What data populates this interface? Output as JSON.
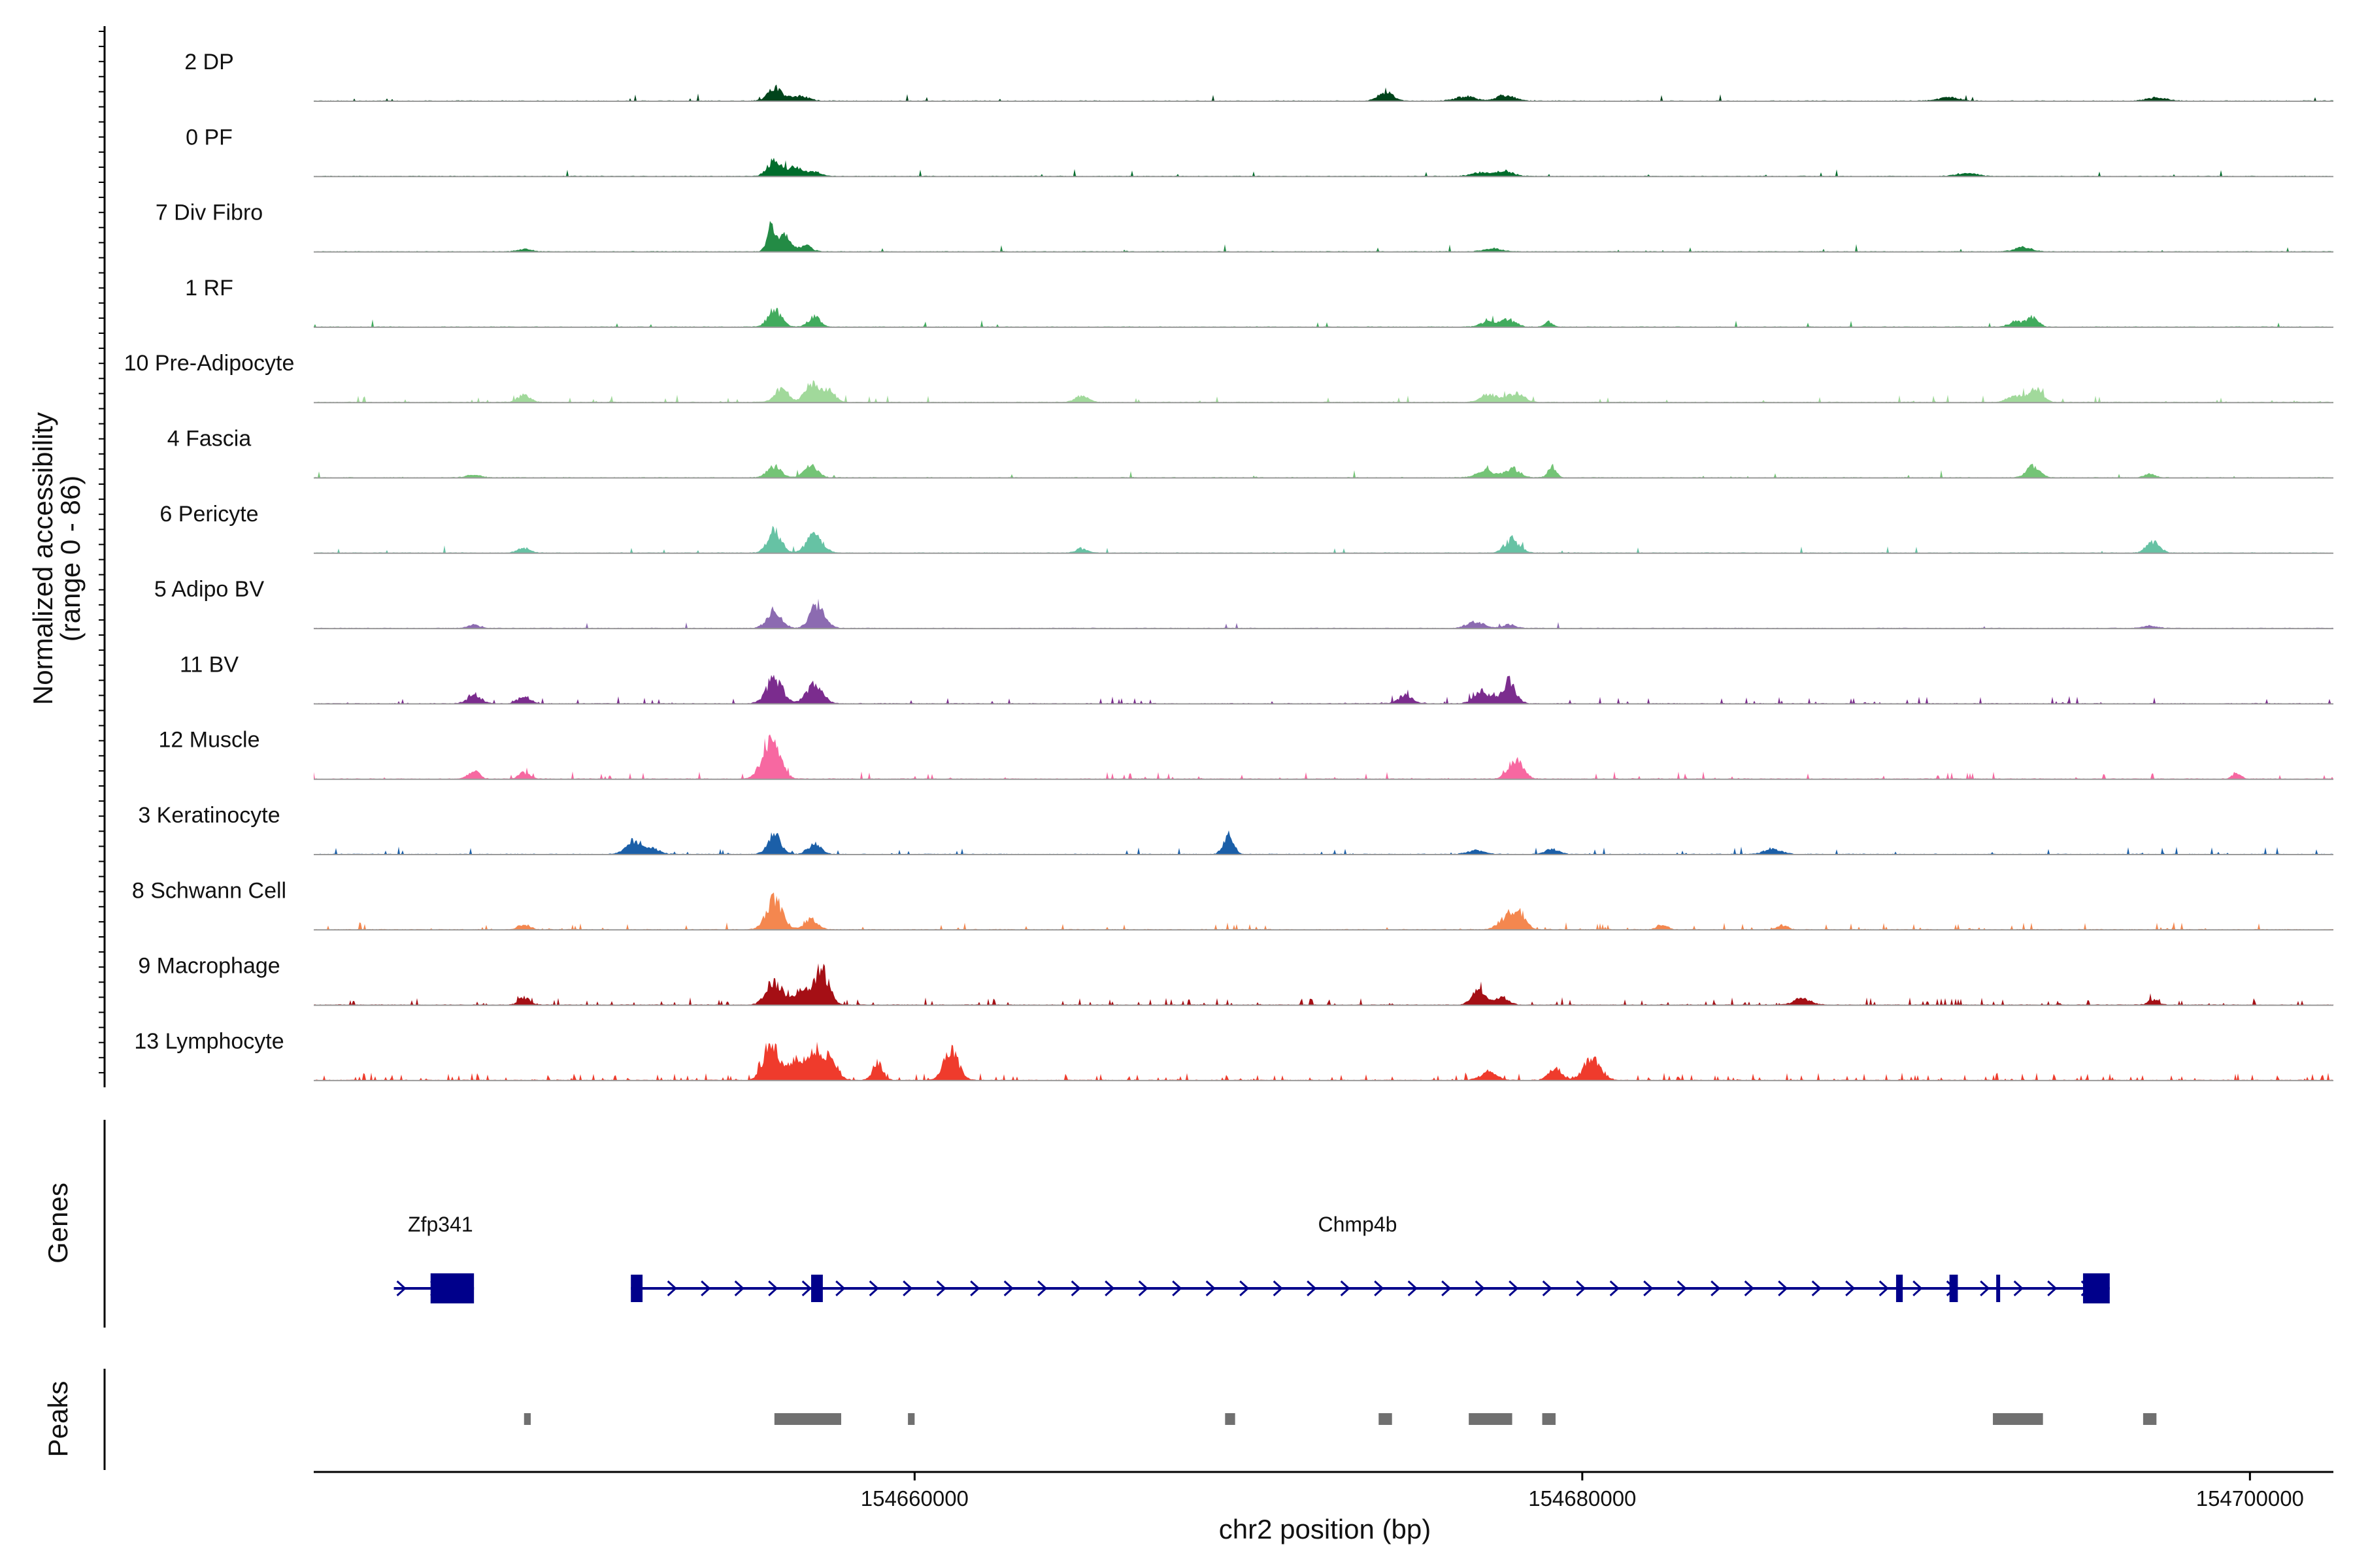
{
  "chart_data": {
    "type": "coverage-track",
    "y_axis_title": [
      "Normalized accessibility",
      "(range 0 - 86)"
    ],
    "y_range": [
      0,
      86
    ],
    "x_axis_title": "chr2 position (bp)",
    "x_range": [
      154642000,
      154702500
    ],
    "x_ticks": [
      {
        "value": 154660000,
        "label": "154660000"
      },
      {
        "value": 154680000,
        "label": "154680000"
      },
      {
        "value": 154700000,
        "label": "154700000"
      }
    ],
    "tracks": [
      {
        "name": "2 DP",
        "color": "#00441b",
        "bg": 0.012,
        "peaks": [
          [
            154655800,
            22,
            200
          ],
          [
            154656500,
            8,
            300
          ],
          [
            154674100,
            14,
            220
          ],
          [
            154676500,
            7,
            300
          ],
          [
            154677700,
            9,
            260
          ],
          [
            154691000,
            6,
            300
          ],
          [
            154697200,
            5,
            300
          ]
        ]
      },
      {
        "name": "0 PF",
        "color": "#006d2c",
        "bg": 0.012,
        "peaks": [
          [
            154655800,
            26,
            200
          ],
          [
            154656400,
            15,
            220
          ],
          [
            154657000,
            7,
            200
          ],
          [
            154677000,
            6,
            300
          ],
          [
            154677700,
            8,
            250
          ],
          [
            154691500,
            5,
            300
          ]
        ]
      },
      {
        "name": "7 Div Fibro",
        "color": "#238b45",
        "bg": 0.012,
        "peaks": [
          [
            154655700,
            42,
            120
          ],
          [
            154656100,
            25,
            160
          ],
          [
            154656700,
            10,
            200
          ],
          [
            154648300,
            4,
            200
          ],
          [
            154677300,
            5,
            250
          ],
          [
            154693200,
            7,
            250
          ]
        ]
      },
      {
        "name": "1 RF",
        "color": "#41ab5d",
        "bg": 0.012,
        "peaks": [
          [
            154655800,
            28,
            200
          ],
          [
            154657000,
            16,
            180
          ],
          [
            154677200,
            8,
            250
          ],
          [
            154677800,
            11,
            220
          ],
          [
            154679000,
            8,
            120
          ],
          [
            154693000,
            9,
            200
          ],
          [
            154693500,
            16,
            160
          ]
        ]
      },
      {
        "name": "10 Pre-Adipocyte",
        "color": "#a1d99b",
        "bg": 0.04,
        "peaks": [
          [
            154648300,
            12,
            180
          ],
          [
            154656000,
            22,
            200
          ],
          [
            154656900,
            28,
            200
          ],
          [
            154657400,
            20,
            200
          ],
          [
            154665000,
            10,
            200
          ],
          [
            154677200,
            12,
            250
          ],
          [
            154678000,
            14,
            250
          ],
          [
            154693000,
            10,
            250
          ],
          [
            154693600,
            20,
            200
          ]
        ]
      },
      {
        "name": "4 Fascia",
        "color": "#74c476",
        "bg": 0.012,
        "peaks": [
          [
            154646800,
            5,
            200
          ],
          [
            154655800,
            18,
            200
          ],
          [
            154656900,
            18,
            200
          ],
          [
            154677100,
            12,
            250
          ],
          [
            154677900,
            15,
            220
          ],
          [
            154679100,
            18,
            120
          ],
          [
            154693500,
            18,
            200
          ],
          [
            154697000,
            6,
            150
          ]
        ]
      },
      {
        "name": "6 Pericyte",
        "color": "#66c2a4",
        "bg": 0.008,
        "peaks": [
          [
            154648300,
            8,
            180
          ],
          [
            154655800,
            36,
            200
          ],
          [
            154657000,
            28,
            240
          ],
          [
            154665000,
            7,
            180
          ],
          [
            154677900,
            22,
            220
          ],
          [
            154697100,
            18,
            200
          ]
        ]
      },
      {
        "name": "5 Adipo BV",
        "color": "#8c6bb1",
        "bg": 0.008,
        "peaks": [
          [
            154646800,
            5,
            200
          ],
          [
            154655800,
            28,
            220
          ],
          [
            154657100,
            38,
            220
          ],
          [
            154676800,
            10,
            250
          ],
          [
            154677800,
            6,
            200
          ],
          [
            154697000,
            4,
            200
          ]
        ]
      },
      {
        "name": "11 BV",
        "color": "#7b2c8e",
        "bg": 0.05,
        "peaks": [
          [
            154646800,
            14,
            200
          ],
          [
            154648300,
            12,
            180
          ],
          [
            154655800,
            40,
            240
          ],
          [
            154657000,
            30,
            240
          ],
          [
            154674700,
            14,
            200
          ],
          [
            154677000,
            20,
            240
          ],
          [
            154677800,
            36,
            200
          ]
        ]
      },
      {
        "name": "12 Muscle",
        "color": "#f768a1",
        "bg": 0.05,
        "peaks": [
          [
            154646800,
            14,
            160
          ],
          [
            154648300,
            10,
            160
          ],
          [
            154655700,
            60,
            260
          ],
          [
            154678000,
            32,
            220
          ],
          [
            154699600,
            10,
            120
          ]
        ]
      },
      {
        "name": "3 Keratinocyte",
        "color": "#1b5fa8",
        "bg": 0.04,
        "peaks": [
          [
            154651600,
            22,
            240
          ],
          [
            154652200,
            8,
            200
          ],
          [
            154655800,
            30,
            200
          ],
          [
            154657000,
            16,
            200
          ],
          [
            154669400,
            30,
            150
          ],
          [
            154676800,
            6,
            250
          ],
          [
            154679100,
            8,
            200
          ],
          [
            154685700,
            9,
            250
          ]
        ]
      },
      {
        "name": "8 Schwann Cell",
        "color": "#f4874f",
        "bg": 0.05,
        "peaks": [
          [
            154648300,
            8,
            180
          ],
          [
            154655800,
            48,
            240
          ],
          [
            154656900,
            16,
            200
          ],
          [
            154677700,
            18,
            220
          ],
          [
            154678100,
            28,
            200
          ],
          [
            154682400,
            8,
            150
          ],
          [
            154686000,
            7,
            150
          ]
        ]
      },
      {
        "name": "9 Macrophage",
        "color": "#a50f15",
        "bg": 0.08,
        "peaks": [
          [
            154648300,
            12,
            160
          ],
          [
            154655800,
            36,
            240
          ],
          [
            154656600,
            26,
            200
          ],
          [
            154657200,
            56,
            220
          ],
          [
            154676900,
            24,
            200
          ],
          [
            154677600,
            12,
            200
          ],
          [
            154686600,
            10,
            250
          ],
          [
            154697100,
            8,
            150
          ]
        ]
      },
      {
        "name": "13 Lymphocyte",
        "color": "#ef3b2c",
        "bg": 0.14,
        "peaks": [
          [
            154655700,
            62,
            220
          ],
          [
            154656400,
            32,
            220
          ],
          [
            154657000,
            44,
            220
          ],
          [
            154657500,
            36,
            200
          ],
          [
            154658900,
            28,
            150
          ],
          [
            154661100,
            48,
            220
          ],
          [
            154677200,
            12,
            250
          ],
          [
            154679200,
            18,
            200
          ],
          [
            154680300,
            36,
            250
          ]
        ]
      }
    ],
    "genes_title": "Genes",
    "genes": [
      {
        "name": "Zfp341",
        "start": 154644400,
        "end": 154646800,
        "strand": "+",
        "exons": [
          [
            154645500,
            154646800
          ]
        ]
      },
      {
        "name": "Chmp4b",
        "start": 154651500,
        "end": 154695800,
        "strand": "+",
        "exons": [
          [
            154651500,
            154651850
          ],
          [
            154656900,
            154657250
          ],
          [
            154689400,
            154689600
          ],
          [
            154691000,
            154691250
          ],
          [
            154692400,
            154692500
          ],
          [
            154695000,
            154695800
          ]
        ]
      }
    ],
    "peaks_title": "Peaks",
    "peak_regions": [
      [
        154648300,
        154648500
      ],
      [
        154655800,
        154657800
      ],
      [
        154659800,
        154660000
      ],
      [
        154669300,
        154669600
      ],
      [
        154673900,
        154674300
      ],
      [
        154676600,
        154677900
      ],
      [
        154678800,
        154679200
      ],
      [
        154692300,
        154693800
      ],
      [
        154696800,
        154697200
      ]
    ]
  }
}
